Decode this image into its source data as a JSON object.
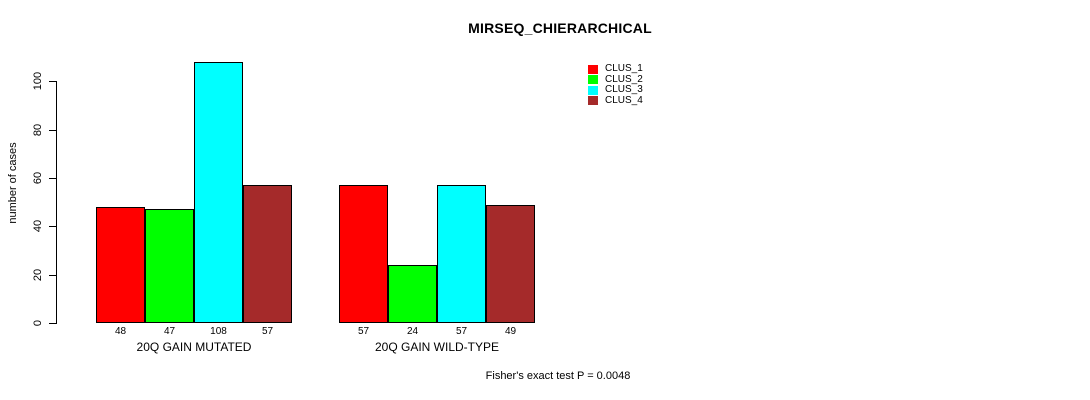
{
  "chart_data": {
    "type": "bar",
    "title": "MIRSEQ_CHIERARCHICAL",
    "ylabel": "number of cases",
    "xlabel": "",
    "yticks": [
      0,
      20,
      40,
      60,
      80,
      100
    ],
    "ylim": [
      0,
      113
    ],
    "grid": false,
    "legend_position": "top-right",
    "groups": [
      "20Q GAIN MUTATED",
      "20Q GAIN WILD-TYPE"
    ],
    "series": [
      {
        "name": "CLUS_1",
        "color": "#ff0000",
        "values": [
          48,
          57
        ]
      },
      {
        "name": "CLUS_2",
        "color": "#00ff00",
        "values": [
          47,
          24
        ]
      },
      {
        "name": "CLUS_3",
        "color": "#00ffff",
        "values": [
          108,
          57
        ]
      },
      {
        "name": "CLUS_4",
        "color": "#a52a2a",
        "values": [
          57,
          49
        ]
      }
    ],
    "bar_value_labels": [
      [
        48,
        47,
        108,
        57
      ],
      [
        57,
        24,
        57,
        49
      ]
    ],
    "footnote": "Fisher's exact test P = 0.0048"
  },
  "colors": {
    "background": "#ffffff",
    "axis": "#000000",
    "text": "#000000"
  }
}
